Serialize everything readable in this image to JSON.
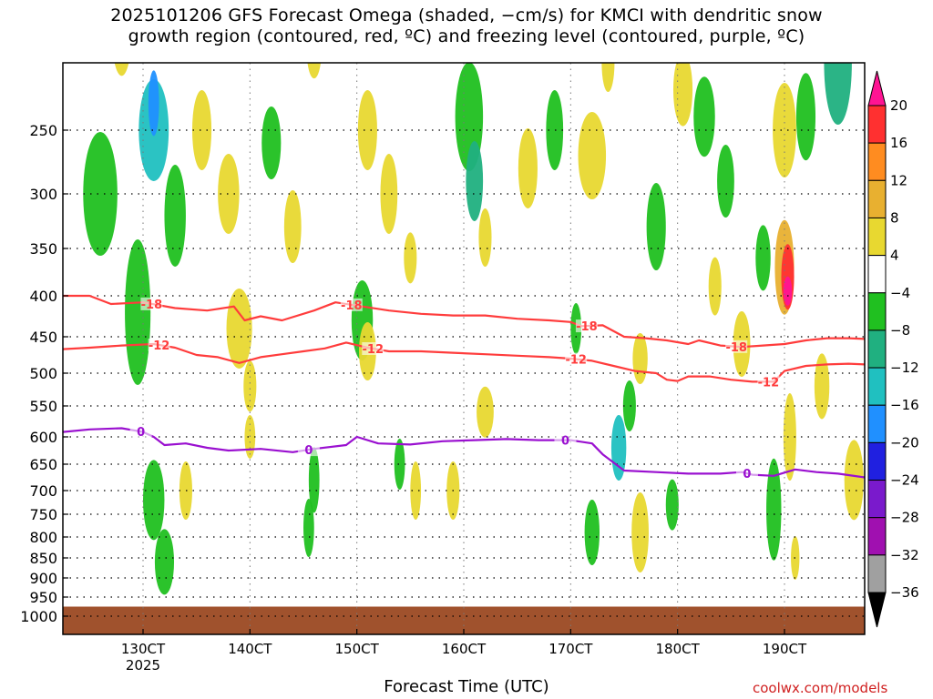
{
  "title_line1": "2025101206 GFS Forecast Omega (shaded, −cm/s) for KMCI with dendritic snow",
  "title_line2": "growth region (contoured, red, ºC) and freezing level (contoured, purple, ºC)",
  "xlabel": "Forecast Time (UTC)",
  "credit": "coolwx.com/models",
  "chart_data": {
    "type": "heatmap",
    "title": "2025101206 GFS Forecast Omega (shaded, −cm/s) for KMCI with dendritic snow growth region (contoured, red, ºC) and freezing level (contoured, purple, ºC)",
    "xlabel": "Forecast Time (UTC)",
    "ylabel": "",
    "x_range_hours": [
      122.5,
      197.5
    ],
    "y_range_hPa": [
      200,
      1025
    ],
    "y_scale": "pressure",
    "x_ticks": [
      {
        "value": 130,
        "label": "130CT",
        "sub": "2025"
      },
      {
        "value": 140,
        "label": "140CT",
        "sub": ""
      },
      {
        "value": 150,
        "label": "150CT",
        "sub": ""
      },
      {
        "value": 160,
        "label": "160CT",
        "sub": ""
      },
      {
        "value": 170,
        "label": "170CT",
        "sub": ""
      },
      {
        "value": 180,
        "label": "180CT",
        "sub": ""
      },
      {
        "value": 190,
        "label": "190CT",
        "sub": ""
      }
    ],
    "y_ticks": [
      250,
      300,
      350,
      400,
      450,
      500,
      550,
      600,
      650,
      700,
      750,
      800,
      850,
      900,
      950,
      1000
    ],
    "grid": true,
    "colorbar": {
      "labels": [
        "20",
        "16",
        "12",
        "8",
        "4",
        "−4",
        "−8",
        "−12",
        "−16",
        "−20",
        "−24",
        "−28",
        "−32",
        "−36"
      ],
      "bins": [
        {
          "color": "#ff1493"
        },
        {
          "color": "#ff3030"
        },
        {
          "color": "#ff8c20"
        },
        {
          "color": "#e8b030"
        },
        {
          "color": "#e8d830"
        },
        {
          "color": "#ffffff"
        },
        {
          "color": "#20c020"
        },
        {
          "color": "#20b080"
        },
        {
          "color": "#20c0c0"
        },
        {
          "color": "#2090ff"
        },
        {
          "color": "#2020e0"
        },
        {
          "color": "#7a1acc"
        },
        {
          "color": "#a010b0"
        },
        {
          "color": "#a0a0a0"
        },
        {
          "color": "#000000"
        }
      ]
    },
    "contours": [
      {
        "label": "-18",
        "color": "#ff3c3c",
        "label_x_hours": [
          130.8,
          149.5,
          171.5,
          185.5
        ],
        "points": [
          [
            122.5,
            400
          ],
          [
            125,
            400
          ],
          [
            127,
            410
          ],
          [
            130,
            408
          ],
          [
            133,
            415
          ],
          [
            136,
            418
          ],
          [
            138.5,
            413
          ],
          [
            139.5,
            430
          ],
          [
            141,
            425
          ],
          [
            143,
            430
          ],
          [
            146,
            418
          ],
          [
            148,
            408
          ],
          [
            150,
            412
          ],
          [
            153,
            418
          ],
          [
            156,
            422
          ],
          [
            159,
            424
          ],
          [
            162,
            424
          ],
          [
            165,
            428
          ],
          [
            168,
            430
          ],
          [
            170,
            432
          ],
          [
            171,
            437
          ],
          [
            173,
            436
          ],
          [
            175,
            450
          ],
          [
            177,
            452
          ],
          [
            179,
            455
          ],
          [
            181,
            460
          ],
          [
            182,
            455
          ],
          [
            184,
            462
          ],
          [
            186,
            464
          ],
          [
            188,
            462
          ],
          [
            190,
            460
          ],
          [
            192,
            455
          ],
          [
            194,
            452
          ],
          [
            196,
            452
          ],
          [
            197.5,
            453
          ]
        ]
      },
      {
        "label": "-12",
        "color": "#ff3c3c",
        "label_x_hours": [
          131.5,
          151.5,
          170.5,
          188.5
        ],
        "points": [
          [
            122.5,
            467
          ],
          [
            125,
            465
          ],
          [
            128,
            462
          ],
          [
            131,
            460
          ],
          [
            133,
            465
          ],
          [
            135,
            475
          ],
          [
            137,
            478
          ],
          [
            139,
            486
          ],
          [
            141,
            478
          ],
          [
            143,
            474
          ],
          [
            145,
            470
          ],
          [
            147,
            466
          ],
          [
            149,
            458
          ],
          [
            151,
            465
          ],
          [
            153,
            470
          ],
          [
            156,
            470
          ],
          [
            159,
            472
          ],
          [
            162,
            474
          ],
          [
            165,
            476
          ],
          [
            168,
            478
          ],
          [
            170,
            480
          ],
          [
            172,
            483
          ],
          [
            174,
            490
          ],
          [
            176,
            497
          ],
          [
            178,
            500
          ],
          [
            179,
            510
          ],
          [
            180,
            512
          ],
          [
            181,
            505
          ],
          [
            183,
            505
          ],
          [
            185,
            510
          ],
          [
            187,
            513
          ],
          [
            189,
            513
          ],
          [
            190,
            497
          ],
          [
            192,
            490
          ],
          [
            194,
            488
          ],
          [
            196,
            487
          ],
          [
            197.5,
            488
          ]
        ]
      },
      {
        "label": "0",
        "color": "#9a10d0",
        "label_x_hours": [
          129.8,
          145.5,
          169.5,
          186.5
        ],
        "points": [
          [
            122.5,
            592
          ],
          [
            125,
            588
          ],
          [
            128,
            586
          ],
          [
            130,
            592
          ],
          [
            131,
            600
          ],
          [
            132,
            615
          ],
          [
            134,
            612
          ],
          [
            136,
            620
          ],
          [
            138,
            625
          ],
          [
            141,
            622
          ],
          [
            144,
            628
          ],
          [
            146,
            622
          ],
          [
            149,
            615
          ],
          [
            150,
            600
          ],
          [
            152,
            612
          ],
          [
            155,
            614
          ],
          [
            158,
            608
          ],
          [
            161,
            606
          ],
          [
            164,
            604
          ],
          [
            167,
            606
          ],
          [
            170,
            606
          ],
          [
            172,
            612
          ],
          [
            173,
            632
          ],
          [
            175,
            662
          ],
          [
            178,
            665
          ],
          [
            181,
            668
          ],
          [
            184,
            668
          ],
          [
            186,
            665
          ],
          [
            187,
            670
          ],
          [
            189,
            672
          ],
          [
            191,
            660
          ],
          [
            193,
            665
          ],
          [
            195,
            668
          ],
          [
            197.5,
            675
          ]
        ]
      }
    ],
    "ground": {
      "color": "#a0522d",
      "top_hPa": 975
    }
  }
}
